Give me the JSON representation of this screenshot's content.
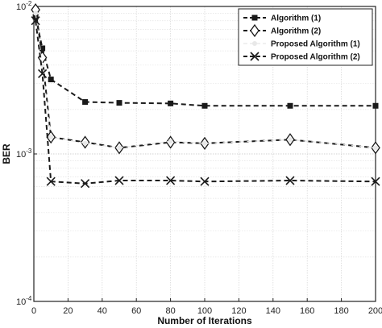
{
  "chart_data": {
    "type": "line",
    "xlabel": "Number of Iterations",
    "ylabel": "BER",
    "x_scale": "linear",
    "y_scale": "log",
    "xlim": [
      0,
      200
    ],
    "ylim": [
      0.0001,
      0.01
    ],
    "x_ticks": [
      0,
      20,
      40,
      60,
      80,
      100,
      120,
      140,
      160,
      180,
      200
    ],
    "y_ticks": [
      {
        "value": 0.01,
        "base": "10",
        "exp": "-2"
      },
      {
        "value": 0.001,
        "base": "10",
        "exp": "-3"
      },
      {
        "value": 0.0001,
        "base": "10",
        "exp": "-4"
      }
    ],
    "grid": true,
    "legend_position": "top-right",
    "series": [
      {
        "name": "Algorithm (1)",
        "marker": "square",
        "color": "#1a1a1a",
        "x": [
          1,
          5,
          10,
          30,
          50,
          80,
          100,
          150,
          200
        ],
        "y": [
          0.0085,
          0.0052,
          0.0032,
          0.00225,
          0.00222,
          0.0022,
          0.00212,
          0.00212,
          0.00212
        ]
      },
      {
        "name": "Algorithm (2)",
        "marker": "diamond",
        "color": "#1a1a1a",
        "x": [
          1,
          5,
          10,
          30,
          50,
          80,
          100,
          150,
          200
        ],
        "y": [
          0.0095,
          0.0045,
          0.0013,
          0.0012,
          0.0011,
          0.0012,
          0.00118,
          0.00125,
          0.0011
        ]
      },
      {
        "name": "Proposed Algorithm (1)",
        "marker": "circle",
        "color": "#e8e8e8",
        "x": [
          1,
          5,
          10,
          30,
          50,
          80,
          100,
          150,
          200
        ],
        "y": [
          0.009,
          0.004,
          0.0013,
          0.00118,
          0.0011,
          0.00122,
          0.00118,
          0.00125,
          0.0011
        ]
      },
      {
        "name": "Proposed Algorithm (2)",
        "marker": "x",
        "color": "#1a1a1a",
        "x": [
          1,
          5,
          10,
          30,
          50,
          80,
          100,
          150,
          200
        ],
        "y": [
          0.008,
          0.0035,
          0.00065,
          0.00063,
          0.00066,
          0.00066,
          0.00065,
          0.00066,
          0.00065
        ]
      }
    ]
  }
}
